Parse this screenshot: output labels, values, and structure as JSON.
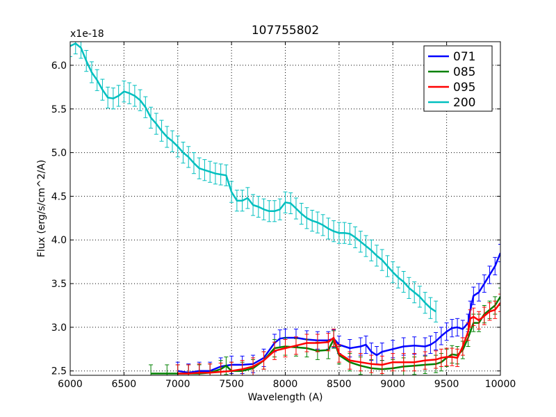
{
  "chart_data": {
    "type": "line",
    "title": "107755802",
    "xlabel": "Wavelength (A)",
    "ylabel": "Flux (erg/s/cm^2/A)",
    "offset_label": "x1e-18",
    "xlim": [
      6000,
      10000
    ],
    "ylim": [
      2.45,
      6.27
    ],
    "x_ticks": [
      6000,
      6500,
      7000,
      7500,
      8000,
      8500,
      9000,
      9500,
      10000
    ],
    "x_tick_labels": [
      "6000",
      "6500",
      "7000",
      "7500",
      "8000",
      "8500",
      "9000",
      "9500",
      "10000"
    ],
    "y_ticks": [
      2.5,
      3.0,
      3.5,
      4.0,
      4.5,
      5.0,
      5.5,
      6.0
    ],
    "y_tick_labels": [
      "2.5",
      "3.0",
      "3.5",
      "4.0",
      "4.5",
      "5.0",
      "5.5",
      "6.0"
    ],
    "grid": true,
    "legend_position": "top-right",
    "series": [
      {
        "name": "071",
        "color": "#0000ff",
        "error": 0.1,
        "points": [
          [
            7000,
            2.5
          ],
          [
            7100,
            2.48
          ],
          [
            7200,
            2.5
          ],
          [
            7300,
            2.5
          ],
          [
            7400,
            2.55
          ],
          [
            7500,
            2.57
          ],
          [
            7600,
            2.57
          ],
          [
            7700,
            2.58
          ],
          [
            7800,
            2.65
          ],
          [
            7900,
            2.82
          ],
          [
            7950,
            2.87
          ],
          [
            8000,
            2.88
          ],
          [
            8100,
            2.88
          ],
          [
            8200,
            2.86
          ],
          [
            8300,
            2.85
          ],
          [
            8400,
            2.85
          ],
          [
            8450,
            2.87
          ],
          [
            8500,
            2.8
          ],
          [
            8600,
            2.76
          ],
          [
            8700,
            2.78
          ],
          [
            8750,
            2.8
          ],
          [
            8800,
            2.72
          ],
          [
            8850,
            2.68
          ],
          [
            8900,
            2.72
          ],
          [
            9000,
            2.75
          ],
          [
            9100,
            2.78
          ],
          [
            9200,
            2.79
          ],
          [
            9300,
            2.78
          ],
          [
            9350,
            2.8
          ],
          [
            9400,
            2.84
          ],
          [
            9450,
            2.9
          ],
          [
            9500,
            2.95
          ],
          [
            9550,
            2.99
          ],
          [
            9600,
            3.0
          ],
          [
            9650,
            2.98
          ],
          [
            9700,
            3.05
          ],
          [
            9720,
            3.2
          ],
          [
            9750,
            3.36
          ],
          [
            9800,
            3.4
          ],
          [
            9850,
            3.5
          ],
          [
            9900,
            3.6
          ],
          [
            9950,
            3.7
          ],
          [
            10000,
            3.85
          ]
        ]
      },
      {
        "name": "085",
        "color": "#008000",
        "error": 0.1,
        "points": [
          [
            6750,
            2.47
          ],
          [
            6900,
            2.47
          ],
          [
            7000,
            2.47
          ],
          [
            7100,
            2.47
          ],
          [
            7200,
            2.47
          ],
          [
            7300,
            2.48
          ],
          [
            7400,
            2.52
          ],
          [
            7450,
            2.56
          ],
          [
            7500,
            2.5
          ],
          [
            7600,
            2.5
          ],
          [
            7700,
            2.53
          ],
          [
            7800,
            2.62
          ],
          [
            7900,
            2.76
          ],
          [
            8000,
            2.78
          ],
          [
            8100,
            2.77
          ],
          [
            8200,
            2.76
          ],
          [
            8300,
            2.73
          ],
          [
            8400,
            2.74
          ],
          [
            8450,
            2.86
          ],
          [
            8500,
            2.68
          ],
          [
            8600,
            2.6
          ],
          [
            8700,
            2.56
          ],
          [
            8800,
            2.53
          ],
          [
            8900,
            2.52
          ],
          [
            9000,
            2.53
          ],
          [
            9100,
            2.55
          ],
          [
            9200,
            2.56
          ],
          [
            9300,
            2.57
          ],
          [
            9400,
            2.58
          ],
          [
            9450,
            2.6
          ],
          [
            9500,
            2.65
          ],
          [
            9550,
            2.69
          ],
          [
            9600,
            2.68
          ],
          [
            9650,
            2.74
          ],
          [
            9700,
            2.88
          ],
          [
            9750,
            3.05
          ],
          [
            9800,
            3.05
          ],
          [
            9850,
            3.15
          ],
          [
            9900,
            3.2
          ],
          [
            9950,
            3.25
          ],
          [
            10000,
            3.35
          ]
        ]
      },
      {
        "name": "095",
        "color": "#ff0000",
        "error": 0.1,
        "points": [
          [
            7000,
            2.47
          ],
          [
            7100,
            2.47
          ],
          [
            7200,
            2.48
          ],
          [
            7300,
            2.48
          ],
          [
            7400,
            2.49
          ],
          [
            7500,
            2.5
          ],
          [
            7600,
            2.52
          ],
          [
            7700,
            2.55
          ],
          [
            7800,
            2.62
          ],
          [
            7900,
            2.73
          ],
          [
            8000,
            2.76
          ],
          [
            8100,
            2.79
          ],
          [
            8200,
            2.82
          ],
          [
            8300,
            2.82
          ],
          [
            8400,
            2.83
          ],
          [
            8450,
            2.88
          ],
          [
            8500,
            2.7
          ],
          [
            8600,
            2.62
          ],
          [
            8700,
            2.6
          ],
          [
            8800,
            2.58
          ],
          [
            8900,
            2.57
          ],
          [
            9000,
            2.6
          ],
          [
            9100,
            2.6
          ],
          [
            9200,
            2.6
          ],
          [
            9300,
            2.62
          ],
          [
            9400,
            2.63
          ],
          [
            9450,
            2.65
          ],
          [
            9500,
            2.66
          ],
          [
            9550,
            2.66
          ],
          [
            9600,
            2.65
          ],
          [
            9650,
            2.78
          ],
          [
            9700,
            2.95
          ],
          [
            9720,
            3.1
          ],
          [
            9750,
            3.12
          ],
          [
            9800,
            3.08
          ],
          [
            9850,
            3.13
          ],
          [
            9900,
            3.18
          ],
          [
            9950,
            3.2
          ],
          [
            10000,
            3.28
          ]
        ]
      },
      {
        "name": "200",
        "color": "#00bfbf",
        "error": 0.12,
        "points": [
          [
            6000,
            6.22
          ],
          [
            6050,
            6.25
          ],
          [
            6100,
            6.2
          ],
          [
            6150,
            6.05
          ],
          [
            6200,
            5.92
          ],
          [
            6250,
            5.83
          ],
          [
            6300,
            5.72
          ],
          [
            6350,
            5.63
          ],
          [
            6400,
            5.62
          ],
          [
            6450,
            5.65
          ],
          [
            6500,
            5.7
          ],
          [
            6550,
            5.68
          ],
          [
            6600,
            5.65
          ],
          [
            6650,
            5.6
          ],
          [
            6700,
            5.52
          ],
          [
            6750,
            5.4
          ],
          [
            6800,
            5.33
          ],
          [
            6850,
            5.25
          ],
          [
            6900,
            5.18
          ],
          [
            6950,
            5.13
          ],
          [
            7000,
            5.07
          ],
          [
            7050,
            5.0
          ],
          [
            7100,
            4.95
          ],
          [
            7150,
            4.88
          ],
          [
            7200,
            4.82
          ],
          [
            7250,
            4.8
          ],
          [
            7300,
            4.78
          ],
          [
            7350,
            4.76
          ],
          [
            7400,
            4.75
          ],
          [
            7450,
            4.74
          ],
          [
            7500,
            4.55
          ],
          [
            7550,
            4.45
          ],
          [
            7600,
            4.45
          ],
          [
            7650,
            4.48
          ],
          [
            7700,
            4.4
          ],
          [
            7750,
            4.38
          ],
          [
            7800,
            4.35
          ],
          [
            7850,
            4.33
          ],
          [
            7900,
            4.33
          ],
          [
            7950,
            4.35
          ],
          [
            8000,
            4.43
          ],
          [
            8050,
            4.42
          ],
          [
            8100,
            4.36
          ],
          [
            8150,
            4.3
          ],
          [
            8200,
            4.25
          ],
          [
            8250,
            4.22
          ],
          [
            8300,
            4.2
          ],
          [
            8350,
            4.17
          ],
          [
            8400,
            4.13
          ],
          [
            8450,
            4.1
          ],
          [
            8500,
            4.08
          ],
          [
            8550,
            4.08
          ],
          [
            8600,
            4.07
          ],
          [
            8650,
            4.03
          ],
          [
            8700,
            3.98
          ],
          [
            8750,
            3.93
          ],
          [
            8800,
            3.88
          ],
          [
            8850,
            3.82
          ],
          [
            8900,
            3.77
          ],
          [
            8950,
            3.7
          ],
          [
            9000,
            3.63
          ],
          [
            9050,
            3.57
          ],
          [
            9100,
            3.52
          ],
          [
            9150,
            3.45
          ],
          [
            9200,
            3.4
          ],
          [
            9250,
            3.35
          ],
          [
            9300,
            3.28
          ],
          [
            9350,
            3.22
          ],
          [
            9400,
            3.18
          ]
        ]
      }
    ]
  }
}
